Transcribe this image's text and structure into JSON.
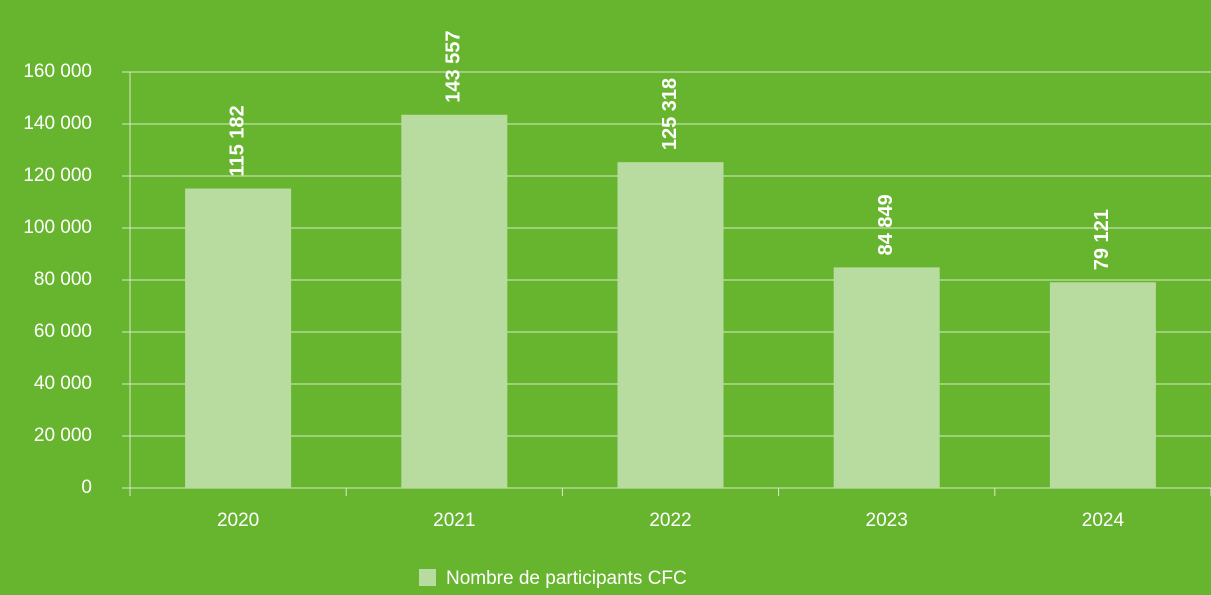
{
  "chart_data": {
    "type": "bar",
    "categories": [
      "2020",
      "2021",
      "2022",
      "2023",
      "2024"
    ],
    "series": [
      {
        "name": "Nombre de participants CFC",
        "color": "#b8dca0",
        "values": [
          115182,
          143557,
          125318,
          84849,
          79121
        ],
        "value_labels": [
          "115 182",
          "143 557",
          "125 318",
          "84 849",
          "79 121"
        ]
      }
    ],
    "ylim": [
      0,
      160000
    ],
    "yticks": [
      0,
      {
        "value": 20000,
        "label": "20 000"
      },
      {
        "value": 40000,
        "label": "40 000"
      },
      {
        "value": 60000,
        "label": "60 000"
      },
      {
        "value": 80000,
        "label": "80 000"
      },
      {
        "value": 100000,
        "label": "100 000"
      },
      {
        "value": 120000,
        "label": "120 000"
      },
      {
        "value": 140000,
        "label": "140 000"
      },
      {
        "value": 160000,
        "label": "160 000"
      }
    ],
    "grid": true,
    "legend": "bottom"
  }
}
